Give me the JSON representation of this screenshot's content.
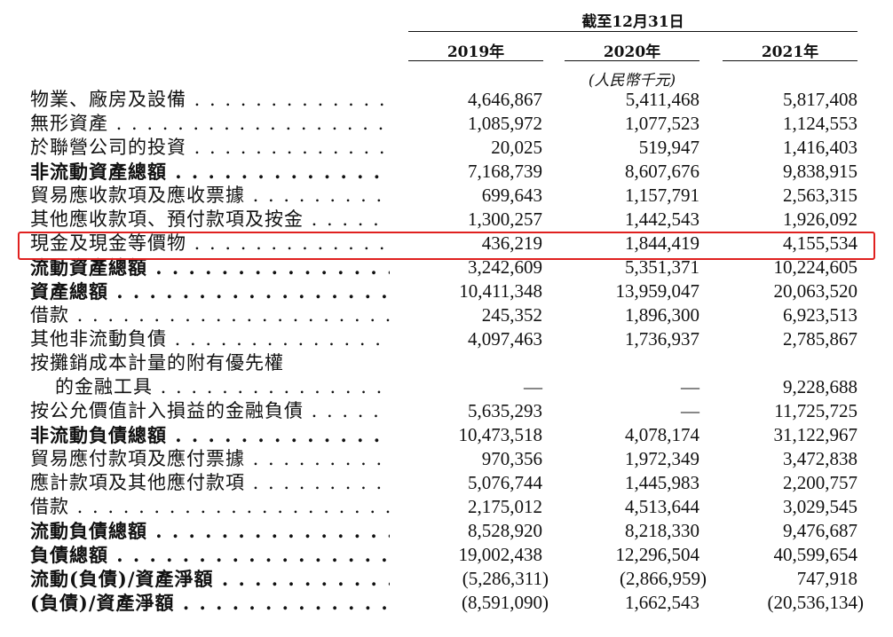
{
  "header": {
    "group_title": "截至12月31日",
    "years": [
      "2019年",
      "2020年",
      "2021年"
    ],
    "unit": "(人民幣千元)"
  },
  "highlight_color": "#e0201f",
  "rows": [
    {
      "label": "物業、廠房及設備",
      "bold": false,
      "values": [
        "4,646,867",
        "5,411,468",
        "5,817,408"
      ]
    },
    {
      "label": "無形資產",
      "bold": false,
      "values": [
        "1,085,972",
        "1,077,523",
        "1,124,553"
      ]
    },
    {
      "label": "於聯營公司的投資",
      "bold": false,
      "values": [
        "20,025",
        "519,947",
        "1,416,403"
      ]
    },
    {
      "label": "非流動資產總額",
      "bold": true,
      "values": [
        "7,168,739",
        "8,607,676",
        "9,838,915"
      ]
    },
    {
      "label": "貿易應收款項及應收票據",
      "bold": false,
      "values": [
        "699,643",
        "1,157,791",
        "2,563,315"
      ]
    },
    {
      "label": "其他應收款項、預付款項及按金",
      "bold": false,
      "values": [
        "1,300,257",
        "1,442,543",
        "1,926,092"
      ]
    },
    {
      "label": "現金及現金等價物",
      "bold": false,
      "highlighted": true,
      "values": [
        "436,219",
        "1,844,419",
        "4,155,534"
      ]
    },
    {
      "label": "流動資產總額",
      "bold": true,
      "values": [
        "3,242,609",
        "5,351,371",
        "10,224,605"
      ]
    },
    {
      "label": "資產總額",
      "bold": true,
      "values": [
        "10,411,348",
        "13,959,047",
        "20,063,520"
      ]
    },
    {
      "label": "借款",
      "bold": false,
      "values": [
        "245,352",
        "1,896,300",
        "6,923,513"
      ]
    },
    {
      "label": "其他非流動負債",
      "bold": false,
      "values": [
        "4,097,463",
        "1,736,937",
        "2,785,867"
      ]
    },
    {
      "label": "按攤銷成本計量的附有優先權",
      "bold": false,
      "no_dots": true,
      "values": [
        "",
        "",
        ""
      ]
    },
    {
      "label": "的金融工具",
      "bold": false,
      "indent": true,
      "values": [
        "—",
        "—",
        "9,228,688"
      ]
    },
    {
      "label": "按公允價值計入損益的金融負債",
      "bold": false,
      "values": [
        "5,635,293",
        "—",
        "11,725,725"
      ]
    },
    {
      "label": "非流動負債總額",
      "bold": true,
      "values": [
        "10,473,518",
        "4,078,174",
        "31,122,967"
      ]
    },
    {
      "label": "貿易應付款項及應付票據",
      "bold": false,
      "values": [
        "970,356",
        "1,972,349",
        "3,472,838"
      ]
    },
    {
      "label": "應計款項及其他應付款項",
      "bold": false,
      "values": [
        "5,076,744",
        "1,445,983",
        "2,200,757"
      ]
    },
    {
      "label": "借款",
      "bold": false,
      "values": [
        "2,175,012",
        "4,513,644",
        "3,029,545"
      ]
    },
    {
      "label": "流動負債總額",
      "bold": true,
      "values": [
        "8,528,920",
        "8,218,330",
        "9,476,687"
      ]
    },
    {
      "label": "負債總額",
      "bold": true,
      "values": [
        "19,002,438",
        "12,296,504",
        "40,599,654"
      ]
    },
    {
      "label": "流動(負債)/資產淨額",
      "bold": true,
      "values": [
        "(5,286,311)",
        "(2,866,959)",
        "747,918"
      ]
    },
    {
      "label": "(負債)/資產淨額",
      "bold": true,
      "values": [
        "(8,591,090)",
        "1,662,543",
        "(20,536,134)"
      ]
    }
  ]
}
